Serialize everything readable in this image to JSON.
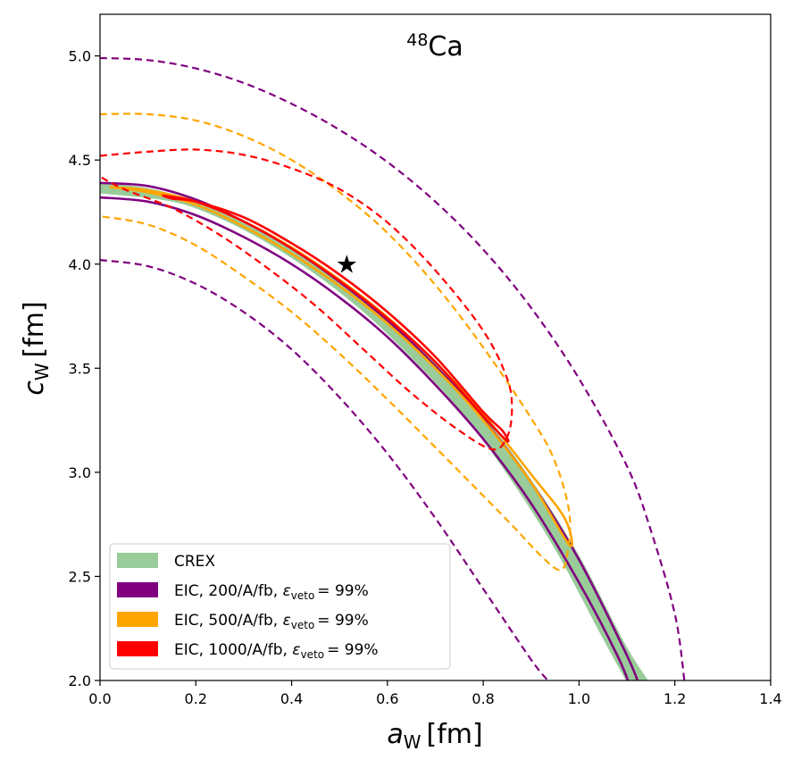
{
  "chart_data": {
    "type": "line",
    "title_sup": "48",
    "title_main": "Ca",
    "xlabel_main": "a",
    "xlabel_sub": "W",
    "xlabel_unit": "[fm]",
    "ylabel_main": "c",
    "ylabel_sub": "W",
    "ylabel_unit": "[fm]",
    "xlim": [
      0.0,
      1.4
    ],
    "ylim": [
      2.0,
      5.2
    ],
    "xticks": [
      "0.0",
      "0.2",
      "0.4",
      "0.6",
      "0.8",
      "1.0",
      "1.2",
      "1.4"
    ],
    "xtick_values": [
      0.0,
      0.2,
      0.4,
      0.6,
      0.8,
      1.0,
      1.2,
      1.4
    ],
    "yticks": [
      "2.0",
      "2.5",
      "3.0",
      "3.5",
      "4.0",
      "4.5",
      "5.0"
    ],
    "ytick_values": [
      2.0,
      2.5,
      3.0,
      3.5,
      4.0,
      4.5,
      5.0
    ],
    "legend": [
      {
        "label": "CREX",
        "color": "#99cc99",
        "mathtext": false
      },
      {
        "label": "EIC, 200/A/fb, ",
        "color": "#800080",
        "mathtext": true
      },
      {
        "label": "EIC, 500/A/fb, ",
        "color": "#ffa500",
        "mathtext": true
      },
      {
        "label": "EIC, 1000/A/fb, ",
        "color": "#ff0000",
        "mathtext": true
      }
    ],
    "eps_symbol": "ε",
    "eps_sub": "veto",
    "eps_value": "= 99%",
    "marker": {
      "name": "star",
      "x": 0.515,
      "y": 4.0
    },
    "crex_band": {
      "color": "#99cc99",
      "upper": [
        [
          0.0,
          4.39
        ],
        [
          0.1,
          4.365
        ],
        [
          0.2,
          4.3
        ],
        [
          0.3,
          4.2
        ],
        [
          0.4,
          4.075
        ],
        [
          0.5,
          3.92
        ],
        [
          0.6,
          3.74
        ],
        [
          0.7,
          3.525
        ],
        [
          0.8,
          3.27
        ],
        [
          0.9,
          2.965
        ],
        [
          1.0,
          2.6
        ],
        [
          1.1,
          2.16
        ],
        [
          1.16,
          1.95
        ]
      ],
      "lower": [
        [
          1.11,
          1.95
        ],
        [
          1.05,
          2.2
        ],
        [
          0.95,
          2.63
        ],
        [
          0.85,
          2.99
        ],
        [
          0.75,
          3.3
        ],
        [
          0.65,
          3.55
        ],
        [
          0.55,
          3.77
        ],
        [
          0.45,
          3.95
        ],
        [
          0.35,
          4.1
        ],
        [
          0.25,
          4.22
        ],
        [
          0.15,
          4.3
        ],
        [
          0.0,
          4.34
        ]
      ]
    },
    "series": [
      {
        "name": "EIC 200 inner upper",
        "color": "#800080",
        "dashed": false,
        "points": [
          [
            0.0,
            4.39
          ],
          [
            0.1,
            4.375
          ],
          [
            0.2,
            4.31
          ],
          [
            0.3,
            4.205
          ],
          [
            0.4,
            4.075
          ],
          [
            0.5,
            3.915
          ],
          [
            0.6,
            3.73
          ],
          [
            0.7,
            3.51
          ],
          [
            0.8,
            3.255
          ],
          [
            0.9,
            2.95
          ],
          [
            1.0,
            2.58
          ],
          [
            1.1,
            2.12
          ],
          [
            1.13,
            1.95
          ]
        ]
      },
      {
        "name": "EIC 200 inner lower",
        "color": "#800080",
        "dashed": false,
        "points": [
          [
            0.0,
            4.32
          ],
          [
            0.1,
            4.3
          ],
          [
            0.2,
            4.235
          ],
          [
            0.3,
            4.13
          ],
          [
            0.4,
            4.0
          ],
          [
            0.5,
            3.84
          ],
          [
            0.6,
            3.65
          ],
          [
            0.7,
            3.42
          ],
          [
            0.8,
            3.16
          ],
          [
            0.9,
            2.85
          ],
          [
            1.0,
            2.47
          ],
          [
            1.08,
            2.12
          ],
          [
            1.11,
            1.95
          ]
        ]
      },
      {
        "name": "EIC 500 inner",
        "color": "#ffa500",
        "dashed": false,
        "points": [
          [
            0.02,
            4.37
          ],
          [
            0.1,
            4.345
          ],
          [
            0.2,
            4.285
          ],
          [
            0.3,
            4.18
          ],
          [
            0.4,
            4.05
          ],
          [
            0.5,
            3.895
          ],
          [
            0.6,
            3.715
          ],
          [
            0.7,
            3.5
          ],
          [
            0.8,
            3.25
          ],
          [
            0.9,
            2.95
          ],
          [
            0.98,
            2.65
          ],
          [
            0.97,
            2.78
          ],
          [
            0.9,
            2.99
          ],
          [
            0.8,
            3.28
          ],
          [
            0.7,
            3.53
          ],
          [
            0.6,
            3.745
          ],
          [
            0.5,
            3.925
          ],
          [
            0.4,
            4.08
          ],
          [
            0.3,
            4.205
          ],
          [
            0.2,
            4.3
          ],
          [
            0.1,
            4.355
          ],
          [
            0.02,
            4.37
          ]
        ]
      },
      {
        "name": "EIC 1000 inner",
        "color": "#ff0000",
        "dashed": false,
        "points": [
          [
            0.13,
            4.33
          ],
          [
            0.2,
            4.3
          ],
          [
            0.3,
            4.205
          ],
          [
            0.4,
            4.075
          ],
          [
            0.5,
            3.92
          ],
          [
            0.6,
            3.74
          ],
          [
            0.7,
            3.53
          ],
          [
            0.8,
            3.27
          ],
          [
            0.85,
            3.15
          ],
          [
            0.84,
            3.2
          ],
          [
            0.8,
            3.29
          ],
          [
            0.7,
            3.555
          ],
          [
            0.6,
            3.77
          ],
          [
            0.5,
            3.95
          ],
          [
            0.4,
            4.1
          ],
          [
            0.3,
            4.225
          ],
          [
            0.2,
            4.3
          ],
          [
            0.15,
            4.315
          ],
          [
            0.13,
            4.33
          ]
        ]
      },
      {
        "name": "EIC 200 outer upper",
        "color": "#800080",
        "dashed": true,
        "points": [
          [
            0.0,
            4.99
          ],
          [
            0.1,
            4.98
          ],
          [
            0.2,
            4.94
          ],
          [
            0.3,
            4.87
          ],
          [
            0.4,
            4.77
          ],
          [
            0.5,
            4.645
          ],
          [
            0.6,
            4.49
          ],
          [
            0.7,
            4.3
          ],
          [
            0.8,
            4.07
          ],
          [
            0.9,
            3.79
          ],
          [
            1.0,
            3.45
          ],
          [
            1.1,
            3.03
          ],
          [
            1.15,
            2.72
          ],
          [
            1.2,
            2.32
          ],
          [
            1.22,
            2.0
          ]
        ]
      },
      {
        "name": "EIC 200 outer lower",
        "color": "#800080",
        "dashed": true,
        "points": [
          [
            0.0,
            4.02
          ],
          [
            0.1,
            3.99
          ],
          [
            0.2,
            3.905
          ],
          [
            0.3,
            3.77
          ],
          [
            0.4,
            3.59
          ],
          [
            0.5,
            3.36
          ],
          [
            0.6,
            3.09
          ],
          [
            0.7,
            2.78
          ],
          [
            0.8,
            2.44
          ],
          [
            0.9,
            2.1
          ],
          [
            0.935,
            2.0
          ]
        ]
      },
      {
        "name": "EIC 500 outer",
        "color": "#ffa500",
        "dashed": true,
        "points": [
          [
            0.0,
            4.72
          ],
          [
            0.1,
            4.72
          ],
          [
            0.2,
            4.69
          ],
          [
            0.3,
            4.615
          ],
          [
            0.4,
            4.5
          ],
          [
            0.5,
            4.345
          ],
          [
            0.6,
            4.15
          ],
          [
            0.7,
            3.9
          ],
          [
            0.8,
            3.6
          ],
          [
            0.9,
            3.26
          ],
          [
            0.95,
            3.05
          ],
          [
            0.98,
            2.8
          ],
          [
            0.975,
            2.6
          ],
          [
            0.96,
            2.53
          ],
          [
            0.92,
            2.6
          ],
          [
            0.85,
            2.77
          ],
          [
            0.7,
            3.12
          ],
          [
            0.6,
            3.35
          ],
          [
            0.5,
            3.57
          ],
          [
            0.4,
            3.77
          ],
          [
            0.3,
            3.94
          ],
          [
            0.2,
            4.09
          ],
          [
            0.1,
            4.19
          ],
          [
            0.0,
            4.23
          ]
        ]
      },
      {
        "name": "EIC 1000 outer",
        "color": "#ff0000",
        "dashed": true,
        "points": [
          [
            0.0,
            4.52
          ],
          [
            0.1,
            4.54
          ],
          [
            0.2,
            4.55
          ],
          [
            0.3,
            4.525
          ],
          [
            0.4,
            4.46
          ],
          [
            0.5,
            4.36
          ],
          [
            0.6,
            4.2
          ],
          [
            0.7,
            3.97
          ],
          [
            0.8,
            3.68
          ],
          [
            0.85,
            3.45
          ],
          [
            0.86,
            3.3
          ],
          [
            0.85,
            3.17
          ],
          [
            0.82,
            3.11
          ],
          [
            0.75,
            3.2
          ],
          [
            0.65,
            3.38
          ],
          [
            0.55,
            3.59
          ],
          [
            0.45,
            3.8
          ],
          [
            0.35,
            3.98
          ],
          [
            0.25,
            4.14
          ],
          [
            0.15,
            4.27
          ],
          [
            0.05,
            4.36
          ],
          [
            0.0,
            4.42
          ]
        ]
      }
    ]
  }
}
